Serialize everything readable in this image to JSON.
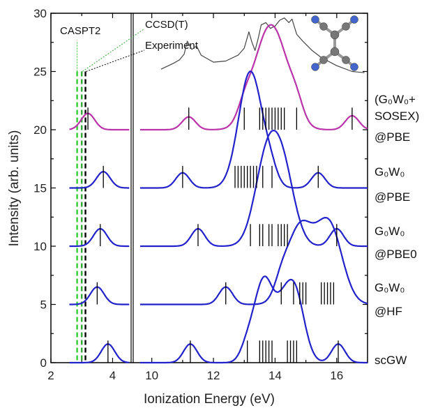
{
  "chart_data": {
    "type": "line",
    "xlabel": "Ionization Energy (eV)",
    "ylabel": "Intensity (arb. units)",
    "ylim": [
      0,
      30
    ],
    "x_ticks_left": [
      "2",
      "4"
    ],
    "x_ticks_right": [
      "10",
      "12",
      "14",
      "16"
    ],
    "y_ticks": [
      "0",
      "5",
      "10",
      "15",
      "20",
      "25",
      "30"
    ],
    "axis_break_after": 4.6,
    "reference_lines": [
      {
        "name": "CASPT2",
        "x": 2.85,
        "color": "#33cc33"
      },
      {
        "name": "CCSD(T)",
        "x": 3.0,
        "color": "#33aa33"
      },
      {
        "name": "Experiment",
        "x": 3.12,
        "color": "#000000"
      }
    ],
    "experiment_spectrum": {
      "color": "#444444",
      "x": [
        10.3,
        10.7,
        10.9,
        11.05,
        11.15,
        11.3,
        11.45,
        11.6,
        11.8,
        12.0,
        12.4,
        12.8,
        13.0,
        13.15,
        13.25,
        13.35,
        13.45,
        13.55,
        13.7,
        13.85,
        14.0,
        14.15,
        14.3,
        14.45,
        14.55,
        14.7,
        14.9,
        15.2,
        15.5,
        16.0,
        16.5,
        16.9
      ],
      "values": [
        25.2,
        25.7,
        26.0,
        26.5,
        27.6,
        26.9,
        27.2,
        26.4,
        26.1,
        25.8,
        25.9,
        26.4,
        27.0,
        28.4,
        27.5,
        26.8,
        27.8,
        29.0,
        29.2,
        28.7,
        28.9,
        29.4,
        29.6,
        29.2,
        29.5,
        28.2,
        27.6,
        26.8,
        26.2,
        25.5,
        25.0,
        24.9
      ]
    },
    "series": [
      {
        "name": "(G0W0+ SOSEX) @PBE",
        "label_lines": [
          "(G₀W₀+",
          "SOSEX)",
          "@PBE"
        ],
        "color": "#bb33aa",
        "baseline": 20,
        "heights": [
          1.4,
          1.1,
          1.1,
          5.0,
          5.5,
          1.2,
          1.2
        ],
        "peaks": [
          3.2,
          11.2,
          13.0,
          13.6,
          14.1,
          14.7,
          16.5
        ],
        "widths": [
          0.22,
          0.22,
          0.22,
          0.45,
          0.45,
          0.22,
          0.22
        ],
        "sticks": [
          3.2,
          11.2,
          13.0,
          13.5,
          13.6,
          13.7,
          13.8,
          13.9,
          14.0,
          14.1,
          14.2,
          14.3,
          14.7,
          16.5
        ]
      },
      {
        "name": "G0W0 @PBE",
        "label_lines": [
          "G₀W₀",
          "@PBE"
        ],
        "color": "#2222cc",
        "baseline": 15,
        "heights": [
          1.4,
          1.3,
          10.0,
          1.2,
          1.3
        ],
        "peaks": [
          3.7,
          11.0,
          13.2,
          13.85,
          15.4
        ],
        "widths": [
          0.22,
          0.22,
          0.38,
          0.22,
          0.22
        ],
        "sticks": [
          3.7,
          11.0,
          12.7,
          12.8,
          12.9,
          13.0,
          13.1,
          13.2,
          13.3,
          13.4,
          13.6,
          13.9,
          15.4
        ]
      },
      {
        "name": "G0W0 @PBE0",
        "label_lines": [
          "G₀W₀",
          "@PBE0"
        ],
        "color": "#2222cc",
        "baseline": 10,
        "heights": [
          1.5,
          1.5,
          6.7,
          6.2,
          1.5
        ],
        "peaks": [
          3.6,
          11.5,
          13.7,
          14.25,
          16.0
        ],
        "widths": [
          0.22,
          0.22,
          0.38,
          0.38,
          0.22
        ],
        "sticks": [
          3.6,
          11.5,
          13.2,
          13.5,
          13.6,
          13.8,
          13.9,
          14.1,
          14.2,
          14.3,
          14.4,
          16.0
        ]
      },
      {
        "name": "G0W0 @HF",
        "label_lines": [
          "G₀W₀",
          "@HF"
        ],
        "color": "#2222cc",
        "baseline": 5,
        "heights": [
          1.5,
          1.5,
          1.2,
          6.5,
          6.8
        ],
        "peaks": [
          3.5,
          12.4,
          14.2,
          14.8,
          15.75
        ],
        "widths": [
          0.22,
          0.22,
          0.22,
          0.42,
          0.42
        ],
        "sticks": [
          3.5,
          12.4,
          14.2,
          14.6,
          14.8,
          14.9,
          15.0,
          15.5,
          15.6,
          15.7,
          15.8,
          15.9
        ]
      },
      {
        "name": "scGW",
        "label_lines": [
          "scGW"
        ],
        "color": "#2222cc",
        "baseline": 0,
        "heights": [
          1.6,
          1.6,
          1.2,
          7.2,
          1.6,
          6.6,
          1.6
        ],
        "peaks": [
          3.85,
          11.25,
          13.1,
          13.65,
          14.2,
          14.6,
          16.05
        ],
        "widths": [
          0.22,
          0.22,
          0.22,
          0.32,
          0.22,
          0.32,
          0.22
        ],
        "sticks": [
          3.85,
          11.25,
          13.1,
          13.5,
          13.6,
          13.7,
          13.8,
          13.9,
          14.4,
          14.5,
          14.6,
          14.7,
          16.05
        ]
      }
    ]
  },
  "molecule_icon": "tetracyanoethylene-molecule-icon"
}
